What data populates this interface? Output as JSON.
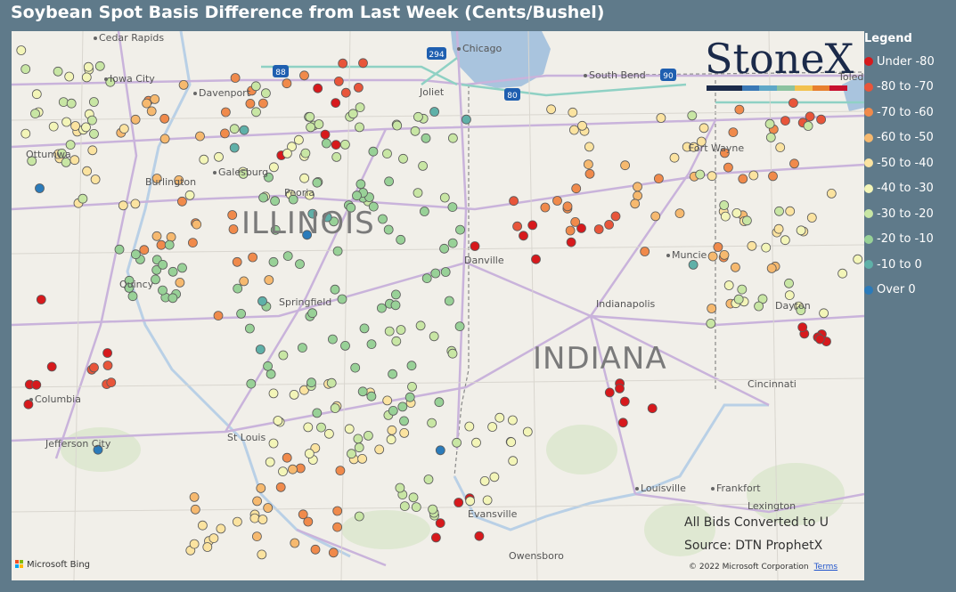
{
  "title": "Soybean Spot Basis Difference from Last Week (Cents/Bushel)",
  "legend": {
    "title": "Legend",
    "items": [
      {
        "label": "Under -80",
        "color": "#d7191c"
      },
      {
        "label": "-80 to -70",
        "color": "#e8553a"
      },
      {
        "label": "-70 to -60",
        "color": "#f08a4b"
      },
      {
        "label": "-60 to -50",
        "color": "#f6b96f"
      },
      {
        "label": "-50 to -40",
        "color": "#fbe3a0"
      },
      {
        "label": "-40 to -30",
        "color": "#f3f5b8"
      },
      {
        "label": "-30 to -20",
        "color": "#c8e6a4"
      },
      {
        "label": "-20 to -10",
        "color": "#98d197"
      },
      {
        "label": "-10 to 0",
        "color": "#5fb0a8"
      },
      {
        "label": "Over 0",
        "color": "#2b7bba"
      }
    ]
  },
  "logo": {
    "text": "StoneX"
  },
  "states": {
    "illinois": "ILLINOIS",
    "indiana": "INDIANA"
  },
  "cities": {
    "cedar_rapids": "Cedar Rapids",
    "iowa_city": "Iowa City",
    "davenport": "Davenport",
    "ottumwa": "Ottumwa",
    "burlington": "Burlington",
    "galesburg": "Galesburg",
    "peoria": "Peoria",
    "quincy": "Quincy",
    "springfield": "Springfield",
    "columbia": "Columbia",
    "jefferson_city": "Jefferson City",
    "st_louis": "St Louis",
    "joliet": "Joliet",
    "chicago": "Chicago",
    "south_bend": "South Bend",
    "fort_wayne": "Fort Wayne",
    "danville": "Danville",
    "muncie": "Muncie",
    "indianapolis": "Indianapolis",
    "dayton": "Dayton",
    "cincinnati": "Cincinnati",
    "louisville": "Louisville",
    "frankfort": "Frankfort",
    "lexington": "Lexington",
    "evansville": "Evansville",
    "owensboro": "Owensboro",
    "toledo": "Toledo"
  },
  "highways": {
    "i88": "88",
    "i294": "294",
    "i80": "80",
    "i90": "90"
  },
  "notes": {
    "bids": "All Bids Converted to U",
    "source": "Source: DTN ProphetX"
  },
  "copyright": {
    "text": "© 2022 Microsoft Corporation",
    "terms": "Terms"
  },
  "bing": {
    "text": "Microsoft Bing"
  },
  "points_by_class": [
    {
      "class": "Under -80",
      "count": 34
    },
    {
      "class": "-80 to -70",
      "count": 20
    },
    {
      "class": "-70 to -60",
      "count": 50
    },
    {
      "class": "-60 to -50",
      "count": 40
    },
    {
      "class": "-50 to -40",
      "count": 60
    },
    {
      "class": "-40 to -30",
      "count": 65
    },
    {
      "class": "-30 to -20",
      "count": 90
    },
    {
      "class": "-20 to -10",
      "count": 85
    },
    {
      "class": "-10 to 0",
      "count": 9
    },
    {
      "class": "Over 0",
      "count": 4
    }
  ]
}
